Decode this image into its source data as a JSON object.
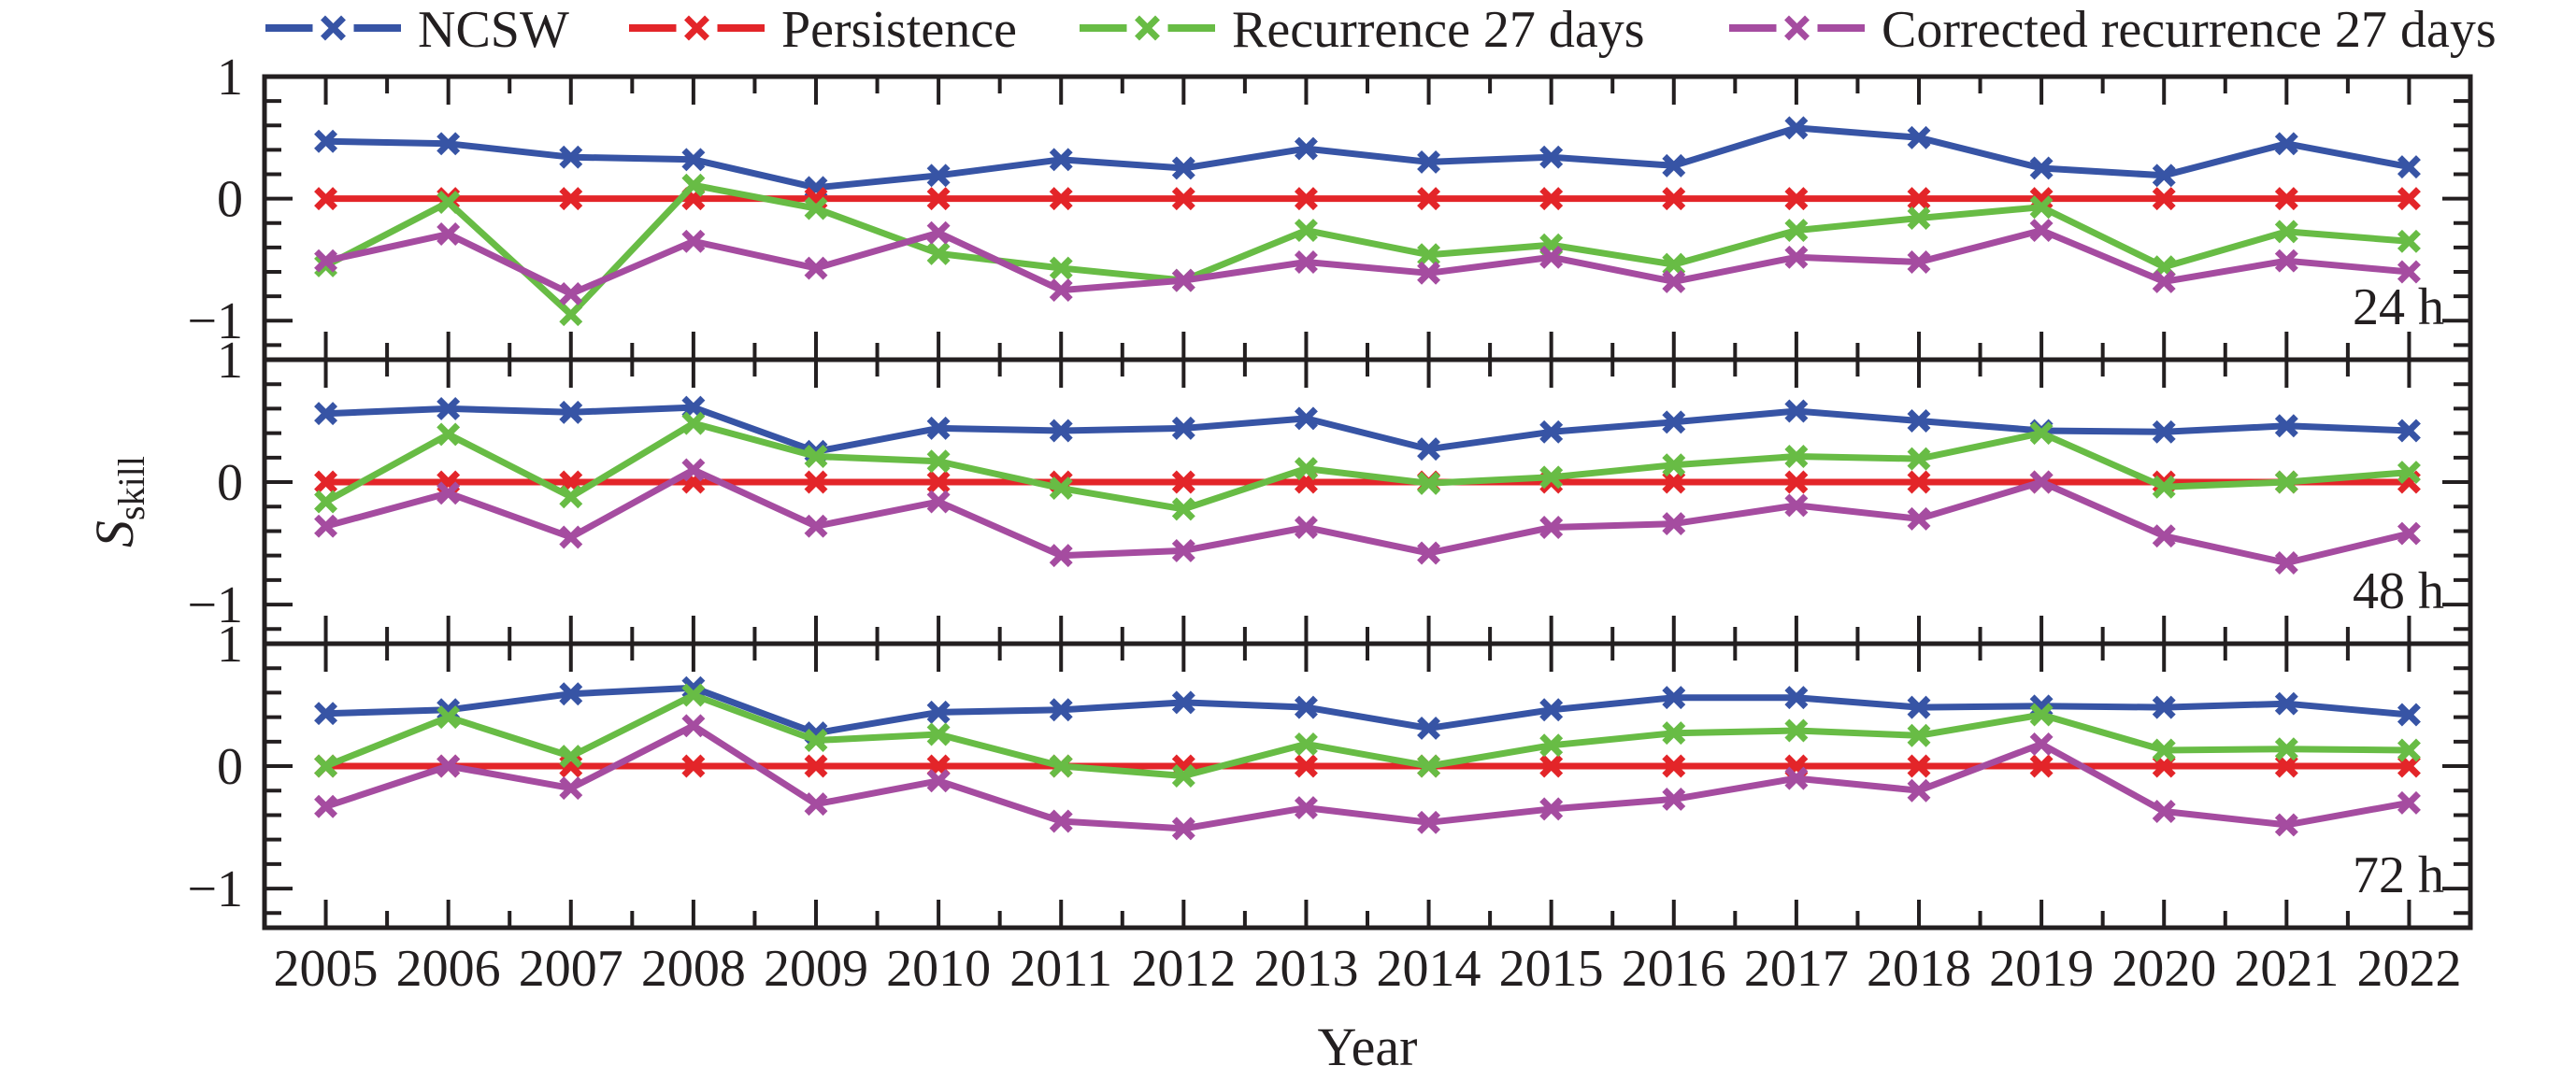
{
  "chart_data": {
    "type": "line",
    "title": "",
    "xlabel": "Year",
    "ylabel": {
      "base": "S",
      "subscript": "skill"
    },
    "x": [
      2005,
      2006,
      2007,
      2008,
      2009,
      2010,
      2011,
      2012,
      2013,
      2014,
      2015,
      2016,
      2017,
      2018,
      2019,
      2020,
      2021,
      2022
    ],
    "x_tick_labels": [
      "2005",
      "2006",
      "2007",
      "2008",
      "2009",
      "2010",
      "2011",
      "2012",
      "2013",
      "2014",
      "2015",
      "2016",
      "2017",
      "2018",
      "2019",
      "2020",
      "2021",
      "2022"
    ],
    "ylim": [
      -1.32,
      1.0
    ],
    "ytick_values": [
      1,
      0,
      -1
    ],
    "ytick_labels": [
      "1",
      "0",
      "−1"
    ],
    "y_minor_tick_values": [
      0.8,
      0.6,
      0.4,
      0.2,
      -0.2,
      -0.4,
      -0.6,
      -0.8,
      -1.2
    ],
    "grid": false,
    "legend_position": "top",
    "marker": "x",
    "axis_color": "#231f20",
    "series_names": [
      "NCSW",
      "Persistence",
      "Recurrence 27 days",
      "Corrected recurrence 27 days"
    ],
    "series_colors": {
      "NCSW": "#3754A5",
      "Persistence": "#E32529",
      "Recurrence 27 days": "#68BC45",
      "Corrected recurrence 27 days": "#A54CA0"
    },
    "panels": [
      {
        "id": "24h",
        "label": "24 h",
        "series": [
          {
            "name": "NCSW",
            "values": [
              0.47,
              0.45,
              0.34,
              0.32,
              0.09,
              0.19,
              0.32,
              0.25,
              0.41,
              0.3,
              0.34,
              0.27,
              0.58,
              0.5,
              0.25,
              0.19,
              0.45,
              0.26
            ]
          },
          {
            "name": "Persistence",
            "values": [
              0,
              0,
              0,
              0,
              0,
              0,
              0,
              0,
              0,
              0,
              0,
              0,
              0,
              0,
              0,
              0,
              0,
              0
            ]
          },
          {
            "name": "Recurrence 27 days",
            "values": [
              -0.55,
              -0.03,
              -0.95,
              0.11,
              -0.08,
              -0.45,
              -0.57,
              -0.67,
              -0.26,
              -0.46,
              -0.38,
              -0.54,
              -0.26,
              -0.16,
              -0.07,
              -0.56,
              -0.27,
              -0.35
            ]
          },
          {
            "name": "Corrected recurrence 27 days",
            "values": [
              -0.51,
              -0.29,
              -0.78,
              -0.35,
              -0.57,
              -0.28,
              -0.75,
              -0.67,
              -0.52,
              -0.61,
              -0.48,
              -0.68,
              -0.48,
              -0.52,
              -0.26,
              -0.68,
              -0.51,
              -0.6
            ]
          }
        ]
      },
      {
        "id": "48h",
        "label": "48 h",
        "series": [
          {
            "name": "NCSW",
            "values": [
              0.56,
              0.6,
              0.57,
              0.61,
              0.25,
              0.44,
              0.42,
              0.44,
              0.52,
              0.27,
              0.41,
              0.49,
              0.58,
              0.5,
              0.42,
              0.41,
              0.46,
              0.42
            ]
          },
          {
            "name": "Persistence",
            "values": [
              0,
              0,
              0,
              0,
              0,
              0,
              0,
              0,
              0,
              0,
              0,
              0,
              0,
              0,
              0,
              0,
              0,
              0
            ]
          },
          {
            "name": "Recurrence 27 days",
            "values": [
              -0.16,
              0.39,
              -0.12,
              0.48,
              0.21,
              0.17,
              -0.05,
              -0.22,
              0.11,
              -0.01,
              0.04,
              0.14,
              0.21,
              0.19,
              0.4,
              -0.04,
              0.0,
              0.08
            ]
          },
          {
            "name": "Corrected recurrence 27 days",
            "values": [
              -0.36,
              -0.09,
              -0.45,
              0.1,
              -0.36,
              -0.16,
              -0.6,
              -0.56,
              -0.37,
              -0.58,
              -0.37,
              -0.34,
              -0.19,
              -0.3,
              0.0,
              -0.44,
              -0.66,
              -0.42
            ]
          }
        ]
      },
      {
        "id": "72h",
        "label": "72 h",
        "series": [
          {
            "name": "NCSW",
            "values": [
              0.43,
              0.46,
              0.59,
              0.64,
              0.27,
              0.44,
              0.46,
              0.52,
              0.48,
              0.31,
              0.46,
              0.56,
              0.56,
              0.48,
              0.49,
              0.48,
              0.51,
              0.42
            ]
          },
          {
            "name": "Persistence",
            "values": [
              0,
              0,
              0,
              0,
              0,
              0,
              0,
              0,
              0,
              0,
              0,
              0,
              0,
              0,
              0,
              0,
              0,
              0
            ]
          },
          {
            "name": "Recurrence 27 days",
            "values": [
              0.0,
              0.4,
              0.08,
              0.58,
              0.21,
              0.26,
              0.0,
              -0.08,
              0.18,
              0.0,
              0.17,
              0.27,
              0.29,
              0.25,
              0.42,
              0.13,
              0.14,
              0.13
            ]
          },
          {
            "name": "Corrected recurrence 27 days",
            "values": [
              -0.33,
              0.0,
              -0.18,
              0.33,
              -0.31,
              -0.12,
              -0.45,
              -0.51,
              -0.34,
              -0.46,
              -0.35,
              -0.27,
              -0.1,
              -0.2,
              0.18,
              -0.37,
              -0.48,
              -0.3
            ]
          }
        ]
      }
    ]
  }
}
